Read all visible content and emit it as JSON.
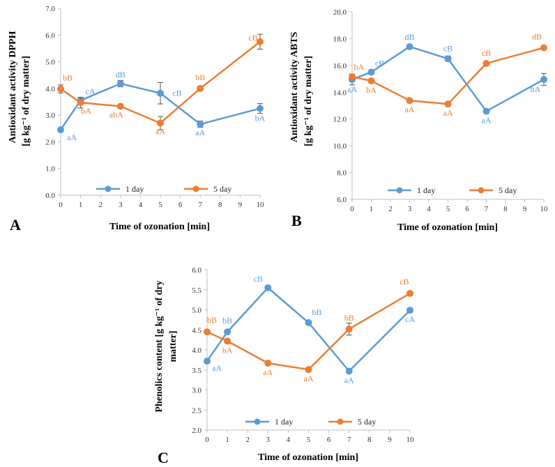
{
  "colors": {
    "series1": "#5B9BD5",
    "series2": "#ED7D31",
    "axis": "#BFBFBF",
    "error": "#555555"
  },
  "chart_data": [
    {
      "type": "line",
      "panel_label": "A",
      "xlabel": "Time of ozonation [min]",
      "ylabel_line1": "Antioxidant activity DPPH",
      "ylabel_line2": "[g kg⁻¹ of dry matter]",
      "x_ticks": [
        "0",
        "1",
        "2",
        "3",
        "4",
        "5",
        "6",
        "7",
        "8",
        "9",
        "10"
      ],
      "ylim": [
        0,
        7
      ],
      "y_ticks": [
        "0.0",
        "1.0",
        "2.0",
        "3.0",
        "4.0",
        "5.0",
        "6.0",
        "7.0"
      ],
      "legend": [
        "1 day",
        "5 day"
      ],
      "series": [
        {
          "name": "1 day",
          "x": [
            0,
            1,
            3,
            5,
            7,
            10
          ],
          "values": [
            2.45,
            3.55,
            4.18,
            3.82,
            2.66,
            3.25
          ],
          "errors": [
            0.05,
            0.1,
            0.12,
            0.4,
            0.12,
            0.18
          ],
          "labels": [
            "aA",
            "cA",
            "dB",
            "cB",
            "aA",
            "bA"
          ]
        },
        {
          "name": "5 day",
          "x": [
            0,
            1,
            3,
            5,
            7,
            10
          ],
          "values": [
            3.98,
            3.47,
            3.33,
            2.7,
            4.0,
            5.75
          ],
          "errors": [
            0.15,
            0.2,
            0.05,
            0.25,
            0.05,
            0.28
          ],
          "labels": [
            "bB",
            "bA",
            "abA",
            "aA",
            "bB",
            "cB"
          ]
        }
      ]
    },
    {
      "type": "line",
      "panel_label": "B",
      "xlabel": "Time of ozonation [min]",
      "ylabel_line1": "Antioxidant activity ABTS",
      "ylabel_line2": "[g kg⁻¹ of dry matter]",
      "x_ticks": [
        "0",
        "1",
        "2",
        "3",
        "4",
        "5",
        "6",
        "7",
        "8",
        "9",
        "10"
      ],
      "ylim": [
        6,
        20
      ],
      "y_ticks": [
        "6.0",
        "8.0",
        "10.0",
        "12.0",
        "14.0",
        "16.0",
        "18.0",
        "20.0"
      ],
      "legend": [
        "1 day",
        "5 day"
      ],
      "series": [
        {
          "name": "1 day",
          "x": [
            0,
            1,
            3,
            5,
            7,
            10
          ],
          "values": [
            14.95,
            15.5,
            17.4,
            16.5,
            12.58,
            14.95
          ],
          "errors": [
            0.4,
            0.15,
            0.12,
            0.2,
            0.12,
            0.45
          ],
          "labels": [
            "aA",
            "cB",
            "dB",
            "cB",
            "aA",
            "bA"
          ]
        },
        {
          "name": "5 day",
          "x": [
            0,
            1,
            3,
            5,
            7,
            10
          ],
          "values": [
            15.15,
            14.85,
            13.38,
            13.12,
            16.15,
            17.32
          ],
          "errors": [
            0.2,
            0.15,
            0.15,
            0.1,
            0.1,
            0.1
          ],
          "labels": [
            "bA",
            "bA",
            "aA",
            "aA",
            "cB",
            "dB"
          ]
        }
      ]
    },
    {
      "type": "line",
      "panel_label": "C",
      "xlabel": "Time of ozonation [min]",
      "ylabel_line1": "Phenolics content [g kg⁻¹ of dry",
      "ylabel_line2": "matter]",
      "x_ticks": [
        "0",
        "1",
        "2",
        "3",
        "4",
        "5",
        "6",
        "7",
        "8",
        "9",
        "10"
      ],
      "ylim": [
        2,
        6
      ],
      "y_ticks": [
        "2.0",
        "2.5",
        "3.0",
        "3.5",
        "4.0",
        "4.5",
        "5.0",
        "5.5",
        "6.0"
      ],
      "legend": [
        "1 day",
        "5 day"
      ],
      "series": [
        {
          "name": "1 day",
          "x": [
            0,
            1,
            3,
            5,
            7,
            10
          ],
          "values": [
            3.72,
            4.45,
            5.55,
            4.68,
            3.47,
            4.99
          ],
          "errors": [
            0.05,
            0.05,
            0.05,
            0.05,
            0.05,
            0.05
          ],
          "labels": [
            "aA",
            "bB",
            "cB",
            "bB",
            "aA",
            "cA"
          ]
        },
        {
          "name": "5 day",
          "x": [
            0,
            1,
            3,
            5,
            7,
            10
          ],
          "values": [
            4.45,
            4.22,
            3.67,
            3.51,
            4.52,
            5.41
          ],
          "errors": [
            0.05,
            0.05,
            0.05,
            0.05,
            0.15,
            0.05
          ],
          "labels": [
            "bB",
            "bA",
            "aA",
            "aA",
            "bB",
            "cB"
          ]
        }
      ]
    }
  ]
}
